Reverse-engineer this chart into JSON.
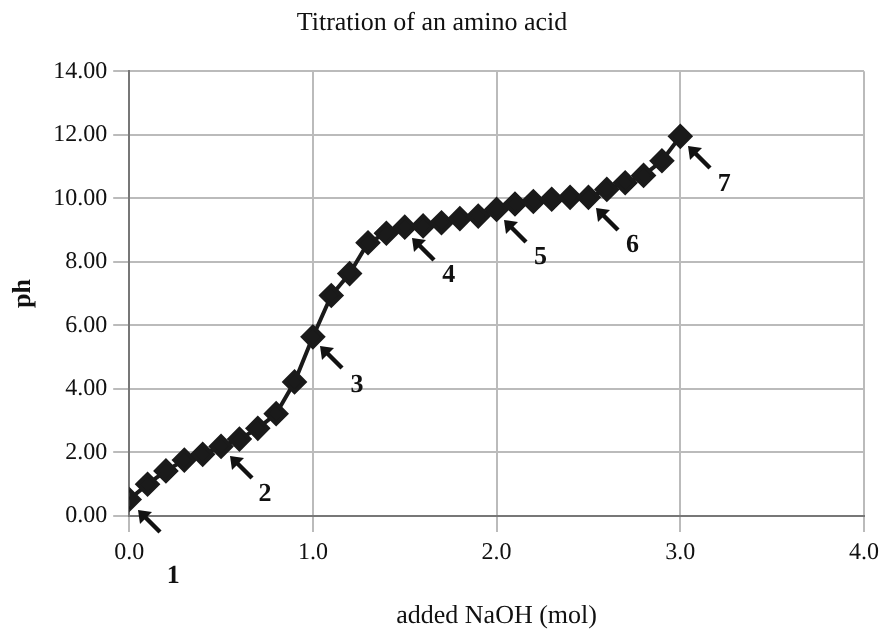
{
  "chart_data": {
    "type": "line",
    "title": "Titration of an amino acid",
    "xlabel": "added NaOH (mol)",
    "ylabel": "ph",
    "x": [
      0,
      0.1,
      0.2,
      0.3,
      0.4,
      0.5,
      0.6,
      0.7,
      0.8,
      0.9,
      1.0,
      1.1,
      1.2,
      1.3,
      1.4,
      1.5,
      1.6,
      1.7,
      1.8,
      1.9,
      2.0,
      2.1,
      2.2,
      2.3,
      2.4,
      2.5,
      2.6,
      2.7,
      2.8,
      2.9,
      3.0
    ],
    "series": [
      {
        "color": "#1a1a1a",
        "values": [
          0.52,
          1.0,
          1.42,
          1.76,
          1.94,
          2.19,
          2.42,
          2.76,
          3.22,
          4.22,
          5.64,
          6.94,
          7.63,
          8.6,
          8.9,
          9.09,
          9.13,
          9.23,
          9.36,
          9.44,
          9.65,
          9.82,
          9.9,
          9.97,
          10.03,
          10.03,
          10.28,
          10.49,
          10.72,
          11.18,
          11.95
        ]
      }
    ],
    "xlim": [
      0,
      4
    ],
    "xticks": [
      {
        "value": 0,
        "label": "0.0"
      },
      {
        "value": 1,
        "label": "1.0"
      },
      {
        "value": 2,
        "label": "2.0"
      },
      {
        "value": 3,
        "label": "3.0"
      },
      {
        "value": 4,
        "label": "4.0"
      }
    ],
    "ylim": [
      0,
      14
    ],
    "yticks": [
      {
        "value": 0,
        "label": "0.00"
      },
      {
        "value": 2,
        "label": "2.00"
      },
      {
        "value": 4,
        "label": "4.00"
      },
      {
        "value": 6,
        "label": "6.00"
      },
      {
        "value": 8,
        "label": "8.00"
      },
      {
        "value": 10,
        "label": "10.00"
      },
      {
        "value": 12,
        "label": "12.00"
      },
      {
        "value": 14,
        "label": "14.00"
      }
    ],
    "grid": true,
    "marker": "diamond",
    "line_style": "solid",
    "annotations": [
      {
        "text": "1",
        "x": 0,
        "y": 0.52
      },
      {
        "text": "2",
        "x": 0.5,
        "y": 2.19
      },
      {
        "text": "3",
        "x": 1.0,
        "y": 5.64
      },
      {
        "text": "4",
        "x": 1.5,
        "y": 9.09
      },
      {
        "text": "5",
        "x": 2.0,
        "y": 9.65
      },
      {
        "text": "6",
        "x": 2.5,
        "y": 10.03
      },
      {
        "text": "7",
        "x": 3.0,
        "y": 11.95
      }
    ]
  }
}
